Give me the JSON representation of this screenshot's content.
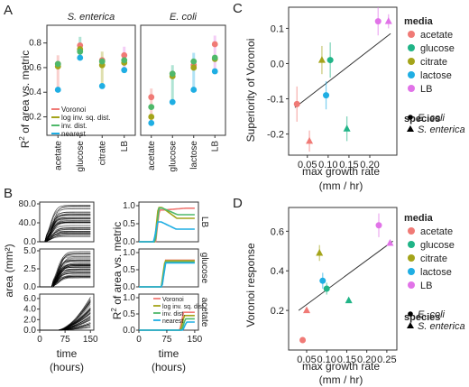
{
  "colors": {
    "acetate": "#F07A76",
    "glucose": "#20B487",
    "citrate": "#A4A41A",
    "lactose": "#1FAEE3",
    "LB": "#E173E8",
    "voronoi": "#F07A76",
    "log_inv_sq_dist": "#A4A41A",
    "inv_dist": "#4FB86A",
    "nearest": "#1FAEE3"
  },
  "panels": {
    "A": {
      "letter": "A",
      "ylabel_main": "R",
      "ylabel_sup": "2",
      "ylabel_rest": " of area vs. metric",
      "facets": [
        "S. enterica",
        "E. coli"
      ],
      "yticks": [
        "0.2",
        "0.4",
        "0.6",
        "0.8"
      ],
      "legend": [
        "Voronoi",
        "log inv. sq. dist.",
        "inv. dist.",
        "nearest"
      ]
    },
    "B": {
      "letter": "B",
      "ylabel_left": "area (mm²)",
      "xlabel": "time\n(hours)",
      "xticks": [
        "0",
        "75",
        "150"
      ],
      "row_labels": [
        "LB",
        "glucose",
        "acetate"
      ],
      "left_yticks": [
        [
          "0.0",
          "40.0",
          "80.0"
        ],
        [
          "0.0",
          "2.5",
          "5.0"
        ],
        [
          "0.0",
          "2.0",
          "4.0",
          "6.0"
        ]
      ],
      "right_yticks": [
        "0.0",
        "0.5",
        "1.0"
      ],
      "ylabel_right_main": "R",
      "ylabel_right_sup": "2",
      "ylabel_right_rest": " of area vs. metric",
      "legend": [
        "Voronoi",
        "log inv. sq. dist.",
        "inv. dist.",
        "nearest"
      ]
    },
    "C": {
      "letter": "C",
      "ylabel": "Superiority of Voronoi",
      "xlabel_1": "max growth rate",
      "xlabel_2": "(mm / hr)",
      "media_title": "media",
      "species_title": "species",
      "media": [
        "acetate",
        "glucose",
        "citrate",
        "lactose",
        "LB"
      ],
      "species": [
        "E. coli",
        "S. enterica"
      ]
    },
    "D": {
      "letter": "D",
      "ylabel": "Voronoi response",
      "xlabel_1": "max growth rate",
      "xlabel_2": "(mm / hr)",
      "media_title": "media",
      "species_title": "species",
      "media": [
        "acetate",
        "glucose",
        "citrate",
        "lactose",
        "LB"
      ],
      "species": [
        "E. coli",
        "S. enterica"
      ]
    }
  },
  "chart_data": [
    {
      "panel": "A",
      "type": "scatter",
      "title": "",
      "ylabel": "R2 of area vs. metric",
      "ylim": [
        0.05,
        0.9
      ],
      "facets": [
        {
          "name": "S. enterica",
          "categories": [
            "acetate",
            "glucose",
            "citrate",
            "LB"
          ],
          "series": [
            {
              "name": "Voronoi",
              "values": [
                0.63,
                0.78,
                0.66,
                0.7
              ]
            },
            {
              "name": "log inv. sq. dist.",
              "values": [
                0.61,
                0.75,
                0.62,
                0.64
              ]
            },
            {
              "name": "inv. dist.",
              "values": [
                0.63,
                0.73,
                0.65,
                0.66
              ]
            },
            {
              "name": "nearest",
              "values": [
                0.42,
                0.68,
                0.45,
                0.58
              ]
            }
          ]
        },
        {
          "name": "E. coli",
          "categories": [
            "acetate",
            "glucose",
            "lactose",
            "LB"
          ],
          "series": [
            {
              "name": "Voronoi",
              "values": [
                0.36,
                0.55,
                0.62,
                0.79
              ]
            },
            {
              "name": "log inv. sq. dist.",
              "values": [
                0.2,
                0.53,
                0.6,
                0.67
              ]
            },
            {
              "name": "inv. dist.",
              "values": [
                0.28,
                0.55,
                0.65,
                0.68
              ]
            },
            {
              "name": "nearest",
              "values": [
                0.15,
                0.32,
                0.42,
                0.57
              ]
            }
          ]
        }
      ]
    },
    {
      "panel": "B",
      "type": "line",
      "xlabel": "time (hours)",
      "xlim": [
        0,
        160
      ],
      "rows": [
        {
          "name": "LB",
          "ymax": 80,
          "final_range": [
            10,
            80
          ],
          "start": 15,
          "steep": 0.12
        },
        {
          "name": "glucose",
          "ymax": 5,
          "final_range": [
            1.2,
            5
          ],
          "start": 35,
          "steep": 0.12
        },
        {
          "name": "acetate",
          "ymax": 6.5,
          "final_range": [
            0.5,
            6.5
          ],
          "start": 50,
          "steep": 0.02
        }
      ],
      "r2": [
        {
          "name": "LB",
          "curves": [
            {
              "series": "Voronoi",
              "rise": 45,
              "peak": 0.88,
              "late": 0.88,
              "lateDelta": 0.05
            },
            {
              "series": "log inv. sq. dist.",
              "rise": 42,
              "peak": 0.95,
              "late": 0.65,
              "lateDelta": 0
            },
            {
              "series": "inv. dist.",
              "rise": 44,
              "peak": 0.93,
              "late": 0.75,
              "lateDelta": 0
            },
            {
              "series": "nearest",
              "rise": 40,
              "peak": 0.55,
              "late": 0.35,
              "lateDelta": 0
            }
          ]
        },
        {
          "name": "glucose",
          "curves": [
            {
              "series": "Voronoi",
              "rise": 62,
              "peak": 0.78,
              "late": 0.78,
              "lateDelta": 0
            },
            {
              "series": "log inv. sq. dist.",
              "rise": 60,
              "peak": 0.76,
              "late": 0.76,
              "lateDelta": 0
            },
            {
              "series": "inv. dist.",
              "rise": 61,
              "peak": 0.72,
              "late": 0.72,
              "lateDelta": 0
            },
            {
              "series": "nearest",
              "rise": 62,
              "peak": 0.7,
              "late": 0.7,
              "lateDelta": 0
            }
          ]
        },
        {
          "name": "acetate",
          "curves": [
            {
              "series": "Voronoi",
              "rise": 110,
              "peak": 0.55,
              "late": 0.55,
              "lateDelta": 0
            },
            {
              "series": "log inv. sq. dist.",
              "rise": 112,
              "peak": 0.45,
              "late": 0.45,
              "lateDelta": 0
            },
            {
              "series": "inv. dist.",
              "rise": 115,
              "peak": 0.35,
              "late": 0.35,
              "lateDelta": 0
            },
            {
              "series": "nearest",
              "rise": 118,
              "peak": 0.25,
              "late": 0.25,
              "lateDelta": 0
            }
          ]
        }
      ]
    },
    {
      "panel": "C",
      "type": "scatter",
      "xlabel": "max growth rate (mm / hr)",
      "ylabel": "Superiority of Voronoi",
      "xlim": [
        0.005,
        0.265
      ],
      "ylim": [
        -0.26,
        0.16
      ],
      "xticks": [
        0.05,
        0.1,
        0.15,
        0.2
      ],
      "yticks": [
        -0.2,
        -0.1,
        0.0,
        0.1
      ],
      "points": [
        {
          "media": "acetate",
          "species": "E. coli",
          "x": 0.025,
          "y": -0.115,
          "err": 0.05
        },
        {
          "media": "acetate",
          "species": "S. enterica",
          "x": 0.055,
          "y": -0.22,
          "err": 0.03
        },
        {
          "media": "glucose",
          "species": "E. coli",
          "x": 0.105,
          "y": 0.01,
          "err": 0.05
        },
        {
          "media": "glucose",
          "species": "S. enterica",
          "x": 0.145,
          "y": -0.185,
          "err": 0.035
        },
        {
          "media": "citrate",
          "species": "S. enterica",
          "x": 0.085,
          "y": 0.01,
          "err": 0.04
        },
        {
          "media": "lactose",
          "species": "E. coli",
          "x": 0.095,
          "y": -0.09,
          "err": 0.04
        },
        {
          "media": "LB",
          "species": "E. coli",
          "x": 0.22,
          "y": 0.12,
          "err": 0.04
        },
        {
          "media": "LB",
          "species": "S. enterica",
          "x": 0.245,
          "y": 0.12,
          "err": 0.02
        }
      ],
      "trend": {
        "x": [
          0.02,
          0.25
        ],
        "y": [
          -0.125,
          0.085
        ]
      }
    },
    {
      "panel": "D",
      "type": "scatter",
      "xlabel": "max growth rate (mm / hr)",
      "ylabel": "Voronoi response",
      "xlim": [
        0.005,
        0.275
      ],
      "ylim": [
        0.0,
        0.72
      ],
      "xticks": [
        0.05,
        0.1,
        0.15,
        0.2,
        0.25
      ],
      "yticks": [
        0.2,
        0.4,
        0.6
      ],
      "points": [
        {
          "media": "acetate",
          "species": "E. coli",
          "x": 0.04,
          "y": 0.05,
          "err": 0.0
        },
        {
          "media": "acetate",
          "species": "S. enterica",
          "x": 0.05,
          "y": 0.2,
          "err": 0.0
        },
        {
          "media": "glucose",
          "species": "E. coli",
          "x": 0.1,
          "y": 0.31,
          "err": 0.03
        },
        {
          "media": "glucose",
          "species": "S. enterica",
          "x": 0.155,
          "y": 0.25,
          "err": 0.0
        },
        {
          "media": "citrate",
          "species": "S. enterica",
          "x": 0.082,
          "y": 0.49,
          "err": 0.04
        },
        {
          "media": "lactose",
          "species": "E. coli",
          "x": 0.09,
          "y": 0.35,
          "err": 0.04
        },
        {
          "media": "LB",
          "species": "E. coli",
          "x": 0.23,
          "y": 0.63,
          "err": 0.06
        },
        {
          "media": "LB",
          "species": "S. enterica",
          "x": 0.258,
          "y": 0.54,
          "err": 0.0
        }
      ],
      "trend": {
        "x": [
          0.03,
          0.265
        ],
        "y": [
          0.2,
          0.55
        ]
      }
    }
  ]
}
